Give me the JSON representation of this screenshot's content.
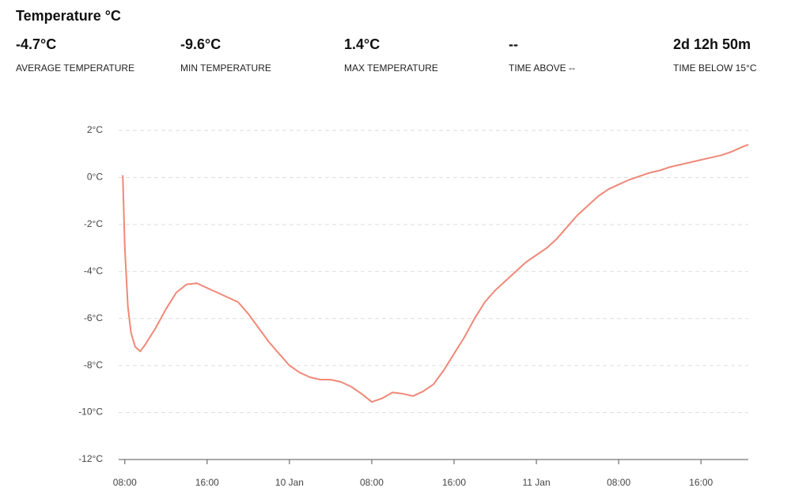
{
  "title": "Temperature °C",
  "stats": [
    {
      "value": "-4.7°C",
      "label": "AVERAGE TEMPERATURE"
    },
    {
      "value": "-9.6°C",
      "label": "MIN TEMPERATURE"
    },
    {
      "value": "1.4°C",
      "label": "MAX TEMPERATURE"
    },
    {
      "value": "--",
      "label": "TIME ABOVE --"
    },
    {
      "value": "2d 12h 50m",
      "label": "TIME BELOW 15°C"
    }
  ],
  "chart_data": {
    "type": "line",
    "color": "#f08878",
    "grid": true,
    "x": [
      7.8,
      8,
      8.3,
      8.6,
      9,
      9.5,
      10,
      11,
      12,
      13,
      14,
      15,
      16,
      17,
      18,
      19,
      20,
      21,
      22,
      23,
      24,
      25,
      26,
      27,
      28,
      29,
      30,
      31,
      32,
      33,
      34,
      35,
      36,
      37,
      38,
      39,
      40,
      41,
      42,
      43,
      44,
      45,
      46,
      47,
      48,
      49,
      50,
      51,
      52,
      53,
      54,
      55,
      56,
      57,
      58,
      59,
      60,
      61,
      62,
      63,
      64,
      65,
      66,
      67,
      68,
      68.6
    ],
    "values": [
      0.1,
      -3,
      -5.5,
      -6.6,
      -7.2,
      -7.4,
      -7.1,
      -6.4,
      -5.6,
      -4.9,
      -4.55,
      -4.5,
      -4.7,
      -4.9,
      -5.1,
      -5.3,
      -5.8,
      -6.4,
      -7,
      -7.5,
      -8,
      -8.3,
      -8.5,
      -8.6,
      -8.6,
      -8.7,
      -8.9,
      -9.2,
      -9.55,
      -9.4,
      -9.15,
      -9.2,
      -9.3,
      -9.1,
      -8.8,
      -8.2,
      -7.5,
      -6.8,
      -6,
      -5.3,
      -4.8,
      -4.4,
      -4,
      -3.6,
      -3.3,
      -3,
      -2.6,
      -2.1,
      -1.6,
      -1.2,
      -0.8,
      -0.5,
      -0.3,
      -0.1,
      0.05,
      0.2,
      0.3,
      0.45,
      0.55,
      0.65,
      0.75,
      0.85,
      0.95,
      1.1,
      1.3,
      1.4
    ],
    "xlim": [
      7.4,
      68.6
    ],
    "xticks": [
      {
        "value": 8,
        "label": "08:00"
      },
      {
        "value": 16,
        "label": "16:00"
      },
      {
        "value": 24,
        "label": "10 Jan"
      },
      {
        "value": 32,
        "label": "08:00"
      },
      {
        "value": 40,
        "label": "16:00"
      },
      {
        "value": 48,
        "label": "11 Jan"
      },
      {
        "value": 56,
        "label": "08:00"
      },
      {
        "value": 64,
        "label": "16:00"
      }
    ],
    "ylim": [
      -12,
      2
    ],
    "yticks": [
      {
        "value": -12,
        "label": "-12°C"
      },
      {
        "value": -10,
        "label": "-10°C"
      },
      {
        "value": -8,
        "label": "-8°C"
      },
      {
        "value": -6,
        "label": "-6°C"
      },
      {
        "value": -4,
        "label": "-4°C"
      },
      {
        "value": -2,
        "label": "-2°C"
      },
      {
        "value": 0,
        "label": "0°C"
      },
      {
        "value": 2,
        "label": "2°C"
      }
    ]
  }
}
